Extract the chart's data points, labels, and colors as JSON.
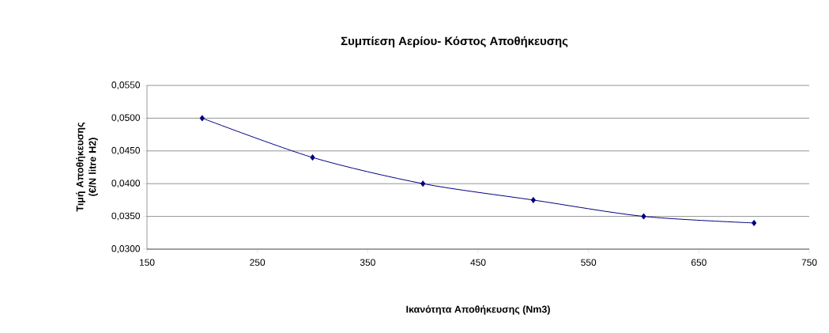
{
  "chart_data": {
    "type": "line",
    "title": "Συμπίεση Αερίου- Κόστος Αποθήκευσης",
    "xlabel": "Ικανότητα Αποθήκευσης (Nm3)",
    "ylabel": "Τιμή Αποθήκευσης (€/N litre H2)",
    "x": [
      200,
      300,
      400,
      500,
      600,
      700
    ],
    "series": [
      {
        "color": "#000080",
        "values": [
          0.05,
          0.044,
          0.04,
          0.0375,
          0.035,
          0.034
        ]
      }
    ],
    "xlim": [
      150,
      750
    ],
    "xticks": [
      150,
      250,
      350,
      450,
      550,
      650,
      750
    ],
    "ylim": [
      0.03,
      0.055
    ],
    "yticks": [
      {
        "value": 0.03,
        "label": "0,0300"
      },
      {
        "value": 0.035,
        "label": "0,0350"
      },
      {
        "value": 0.04,
        "label": "0,0400"
      },
      {
        "value": 0.045,
        "label": "0,0450"
      },
      {
        "value": 0.05,
        "label": "0,0500"
      },
      {
        "value": 0.055,
        "label": "0,0550"
      }
    ],
    "grid": "y",
    "marker": "diamond",
    "line_style": "solid"
  }
}
